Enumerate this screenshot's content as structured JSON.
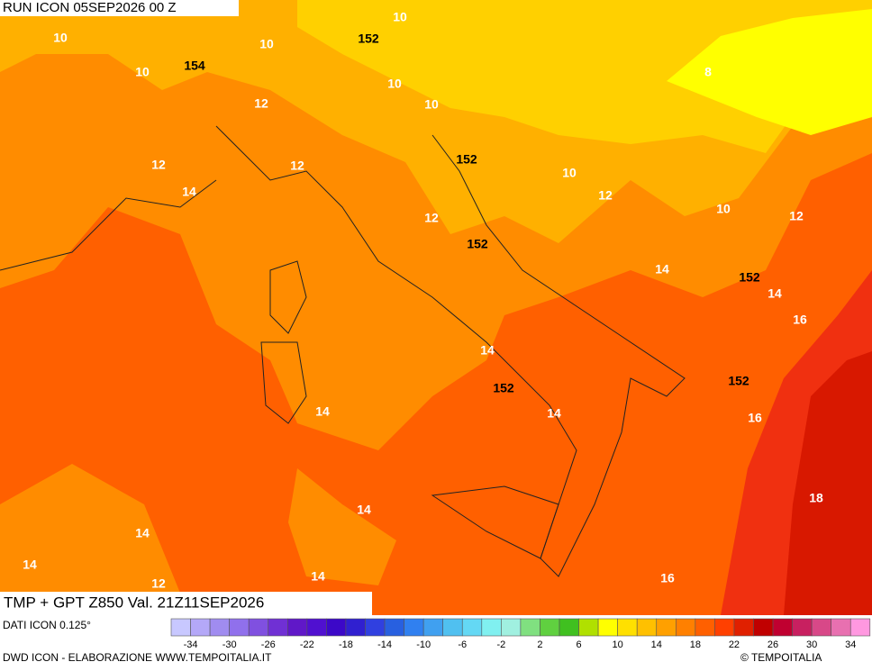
{
  "header": {
    "run": "RUN ICON 05SEP2026 00 Z"
  },
  "field_label": "TMP + GPT Z850 Val. 21Z11SEP2026",
  "source": "DATI ICON 0.125°",
  "credit": "DWD ICON - ELABORAZIONE WWW.TEMPOITALIA.IT",
  "copyright": "© TEMPOITALIA",
  "colorbar": {
    "ticks": [
      -34,
      -30,
      -26,
      -22,
      -18,
      -14,
      -10,
      -6,
      -2,
      2,
      6,
      10,
      14,
      18,
      22,
      26,
      30,
      34
    ],
    "colors": [
      "#c8c8ff",
      "#b4a8f8",
      "#a08cf0",
      "#9070ec",
      "#8050e0",
      "#7030d4",
      "#6018c8",
      "#5010d0",
      "#3c08c8",
      "#3020d0",
      "#3040e0",
      "#2860e0",
      "#3080f0",
      "#40a0f0",
      "#50c0f0",
      "#64d8f4",
      "#80f0f0",
      "#a0f0e0",
      "#80e080",
      "#60d040",
      "#40c020",
      "#b0e000",
      "#ffff00",
      "#ffe000",
      "#ffc000",
      "#ffa000",
      "#ff8000",
      "#ff6000",
      "#ff4000",
      "#e02000",
      "#c00000",
      "#c00030",
      "#c82060",
      "#d84888",
      "#e870b0",
      "#ff98e0"
    ]
  },
  "contour_labels": [
    "10",
    "10",
    "152",
    "10",
    "10",
    "154",
    "8",
    "10",
    "12",
    "10",
    "152",
    "12",
    "12",
    "10",
    "14",
    "12",
    "10",
    "12",
    "12",
    "152",
    "14",
    "152",
    "14",
    "16",
    "14",
    "152",
    "152",
    "14",
    "14",
    "16",
    "18",
    "14",
    "14",
    "14",
    "12",
    "14",
    "16"
  ]
}
